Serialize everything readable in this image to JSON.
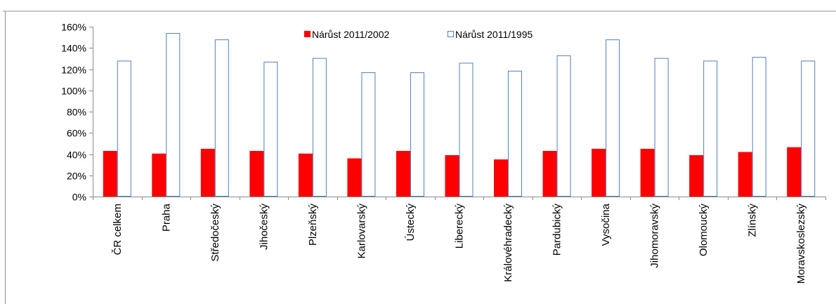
{
  "chart_data": {
    "type": "bar",
    "categories": [
      "ČR celkem",
      "Praha",
      "Středočeský",
      "Jihočeský",
      "Plzeňský",
      "Karlovarský",
      "Ústecký",
      "Liberecký",
      "Královéhradecký",
      "Pardubický",
      "Vysočina",
      "Jihomoravský",
      "Olomoucký",
      "Zlínský",
      "Moravskoslezský"
    ],
    "series": [
      {
        "name": "Nárůst 2011/2002",
        "color": "#ff0000",
        "fill": "solid",
        "values": [
          43,
          40.5,
          45,
          43,
          40.5,
          36,
          43,
          39,
          35,
          43,
          45,
          45,
          39,
          42,
          46.5
        ]
      },
      {
        "name": "Nárůst 2011/1995",
        "color": "#4f81bd",
        "fill": "outline",
        "values": [
          128,
          154,
          148,
          127,
          130.5,
          117,
          117,
          126,
          118.5,
          133,
          148,
          130.5,
          128,
          131.5,
          128
        ]
      }
    ],
    "yticks": [
      "0%",
      "20%",
      "40%",
      "60%",
      "80%",
      "100%",
      "120%",
      "140%",
      "160%"
    ],
    "ylim": [
      0,
      160
    ],
    "ytick_step": 20,
    "legend_position": "top",
    "grid": false
  }
}
